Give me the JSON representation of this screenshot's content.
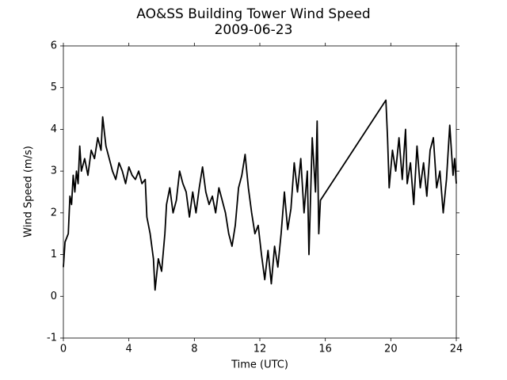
{
  "chart_data": {
    "type": "line",
    "title": "AO&SS Building Tower Wind Speed",
    "subtitle": "2009-06-23",
    "x_label": "Time (UTC)",
    "y_label": "Wind Speed (m/s)",
    "xlim": [
      0,
      24
    ],
    "xticks": [
      0,
      4,
      8,
      12,
      16,
      20,
      24
    ],
    "ylim": [
      -1,
      6
    ],
    "yticks": [
      -1,
      0,
      1,
      2,
      3,
      4,
      5,
      6
    ],
    "grid": false,
    "series": [
      {
        "color": "#000000",
        "x": [
          0,
          0.1,
          0.3,
          0.4,
          0.5,
          0.6,
          0.7,
          0.8,
          0.9,
          1.0,
          1.1,
          1.3,
          1.5,
          1.7,
          1.9,
          2.1,
          2.3,
          2.4,
          2.6,
          2.8,
          3.0,
          3.2,
          3.4,
          3.6,
          3.8,
          4.0,
          4.2,
          4.4,
          4.6,
          4.8,
          5.0,
          5.1,
          5.3,
          5.5,
          5.6,
          5.8,
          6.0,
          6.2,
          6.3,
          6.5,
          6.7,
          6.9,
          7.1,
          7.3,
          7.5,
          7.7,
          7.9,
          8.1,
          8.3,
          8.5,
          8.7,
          8.9,
          9.1,
          9.3,
          9.5,
          9.7,
          9.9,
          10.1,
          10.3,
          10.5,
          10.7,
          10.9,
          11.1,
          11.3,
          11.5,
          11.7,
          11.9,
          12.1,
          12.3,
          12.5,
          12.7,
          12.9,
          13.1,
          13.3,
          13.5,
          13.7,
          13.9,
          14.1,
          14.3,
          14.5,
          14.7,
          14.9,
          15.0,
          15.2,
          15.4,
          15.5,
          15.6,
          15.7,
          19.7,
          19.8,
          19.9,
          20.1,
          20.3,
          20.5,
          20.7,
          20.9,
          21.0,
          21.2,
          21.4,
          21.6,
          21.8,
          22.0,
          22.2,
          22.4,
          22.6,
          22.8,
          23.0,
          23.2,
          23.4,
          23.6,
          23.8,
          23.9,
          24
        ],
        "values": [
          0.7,
          1.3,
          1.5,
          2.4,
          2.2,
          2.9,
          2.5,
          3.0,
          2.7,
          3.6,
          3.0,
          3.3,
          2.9,
          3.5,
          3.3,
          3.8,
          3.5,
          4.3,
          3.6,
          3.3,
          3.0,
          2.8,
          3.2,
          3.0,
          2.7,
          3.1,
          2.9,
          2.8,
          3.0,
          2.7,
          2.8,
          1.9,
          1.5,
          0.9,
          0.15,
          0.9,
          0.6,
          1.5,
          2.2,
          2.6,
          2.0,
          2.3,
          3.0,
          2.7,
          2.5,
          1.9,
          2.5,
          2.0,
          2.6,
          3.1,
          2.5,
          2.2,
          2.4,
          2.0,
          2.6,
          2.3,
          2.0,
          1.5,
          1.2,
          1.7,
          2.6,
          2.9,
          3.4,
          2.6,
          2.0,
          1.5,
          1.7,
          1.0,
          0.4,
          1.1,
          0.3,
          1.2,
          0.7,
          1.5,
          2.5,
          1.6,
          2.1,
          3.2,
          2.5,
          3.3,
          2.0,
          3.0,
          1.0,
          3.8,
          2.5,
          4.2,
          1.5,
          2.3,
          4.7,
          3.8,
          2.6,
          3.5,
          3.0,
          3.8,
          2.8,
          4.0,
          2.7,
          3.2,
          2.2,
          3.6,
          2.6,
          3.2,
          2.4,
          3.5,
          3.8,
          2.6,
          3.0,
          2.0,
          2.8,
          4.1,
          2.9,
          3.3,
          2.7
        ]
      }
    ]
  }
}
